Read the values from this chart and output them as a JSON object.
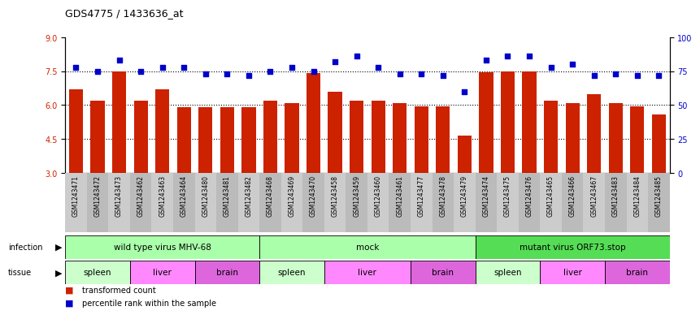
{
  "title": "GDS4775 / 1433636_at",
  "samples": [
    "GSM1243471",
    "GSM1243472",
    "GSM1243473",
    "GSM1243462",
    "GSM1243463",
    "GSM1243464",
    "GSM1243480",
    "GSM1243481",
    "GSM1243482",
    "GSM1243468",
    "GSM1243469",
    "GSM1243470",
    "GSM1243458",
    "GSM1243459",
    "GSM1243460",
    "GSM1243461",
    "GSM1243477",
    "GSM1243478",
    "GSM1243479",
    "GSM1243474",
    "GSM1243475",
    "GSM1243476",
    "GSM1243465",
    "GSM1243466",
    "GSM1243467",
    "GSM1243483",
    "GSM1243484",
    "GSM1243485"
  ],
  "bar_values": [
    6.7,
    6.2,
    7.5,
    6.2,
    6.7,
    5.9,
    5.9,
    5.9,
    5.9,
    6.2,
    6.1,
    7.4,
    6.6,
    6.2,
    6.2,
    6.1,
    5.95,
    5.95,
    4.65,
    7.45,
    7.5,
    7.5,
    6.2,
    6.1,
    6.5,
    6.1,
    5.95,
    5.6
  ],
  "percentile_values": [
    78,
    75,
    83,
    75,
    78,
    78,
    73,
    73,
    72,
    75,
    78,
    75,
    82,
    86,
    78,
    73,
    73,
    72,
    60,
    83,
    86,
    86,
    78,
    80,
    72,
    73,
    72,
    72
  ],
  "ylim_left": [
    3,
    9
  ],
  "ylim_right": [
    0,
    100
  ],
  "yticks_left": [
    3,
    4.5,
    6,
    7.5,
    9
  ],
  "yticks_right": [
    0,
    25,
    50,
    75,
    100
  ],
  "bar_color": "#cc2200",
  "dot_color": "#0000cc",
  "infection_groups": [
    {
      "label": "wild type virus MHV-68",
      "start": 0,
      "end": 9,
      "color": "#aaffaa"
    },
    {
      "label": "mock",
      "start": 9,
      "end": 19,
      "color": "#aaffaa"
    },
    {
      "label": "mutant virus ORF73.stop",
      "start": 19,
      "end": 28,
      "color": "#44dd44"
    }
  ],
  "tissue_groups": [
    {
      "label": "spleen",
      "start": 0,
      "end": 3,
      "color": "#ccffcc"
    },
    {
      "label": "liver",
      "start": 3,
      "end": 6,
      "color": "#ee88ee"
    },
    {
      "label": "brain",
      "start": 6,
      "end": 9,
      "color": "#ee88ee"
    },
    {
      "label": "spleen",
      "start": 9,
      "end": 12,
      "color": "#ccffcc"
    },
    {
      "label": "liver",
      "start": 12,
      "end": 16,
      "color": "#ee88ee"
    },
    {
      "label": "brain",
      "start": 16,
      "end": 19,
      "color": "#ee88ee"
    },
    {
      "label": "spleen",
      "start": 19,
      "end": 22,
      "color": "#ccffcc"
    },
    {
      "label": "liver",
      "start": 22,
      "end": 25,
      "color": "#ee88ee"
    },
    {
      "label": "brain",
      "start": 25,
      "end": 28,
      "color": "#ee88ee"
    }
  ],
  "grid_color": "#000000",
  "bg_color": "#ffffff",
  "xtick_bg": "#cccccc"
}
